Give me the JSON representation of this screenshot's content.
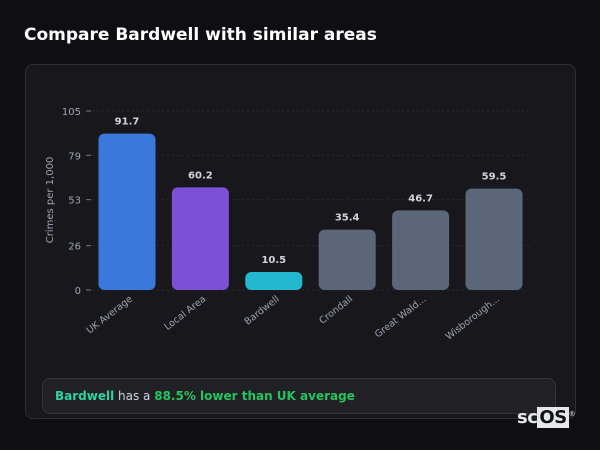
{
  "title": "Compare Bardwell with similar areas",
  "chart_data": {
    "type": "bar",
    "title": "",
    "xlabel": "",
    "ylabel": "Crimes per 1,000",
    "ylim": [
      0,
      105
    ],
    "yticks": [
      0,
      26,
      53,
      79,
      105
    ],
    "grid": true,
    "categories": [
      "UK Average",
      "Local Area",
      "Bardwell",
      "Crondall",
      "Great Wald...",
      "Wisborough..."
    ],
    "values": [
      91.7,
      60.2,
      10.5,
      35.4,
      46.7,
      59.5
    ],
    "value_labels": [
      "91.7",
      "60.2",
      "10.5",
      "35.4",
      "46.7",
      "59.5"
    ],
    "colors": [
      "#3b78dc",
      "#7b4fd6",
      "#22b8d0",
      "#5c6679",
      "#5c6679",
      "#5c6679"
    ]
  },
  "note": {
    "area": "Bardwell",
    "text": " has a ",
    "highlight": "88.5% lower than UK average"
  },
  "watermark": {
    "prefix": "sc",
    "boxed": "OS",
    "mark": "®"
  }
}
